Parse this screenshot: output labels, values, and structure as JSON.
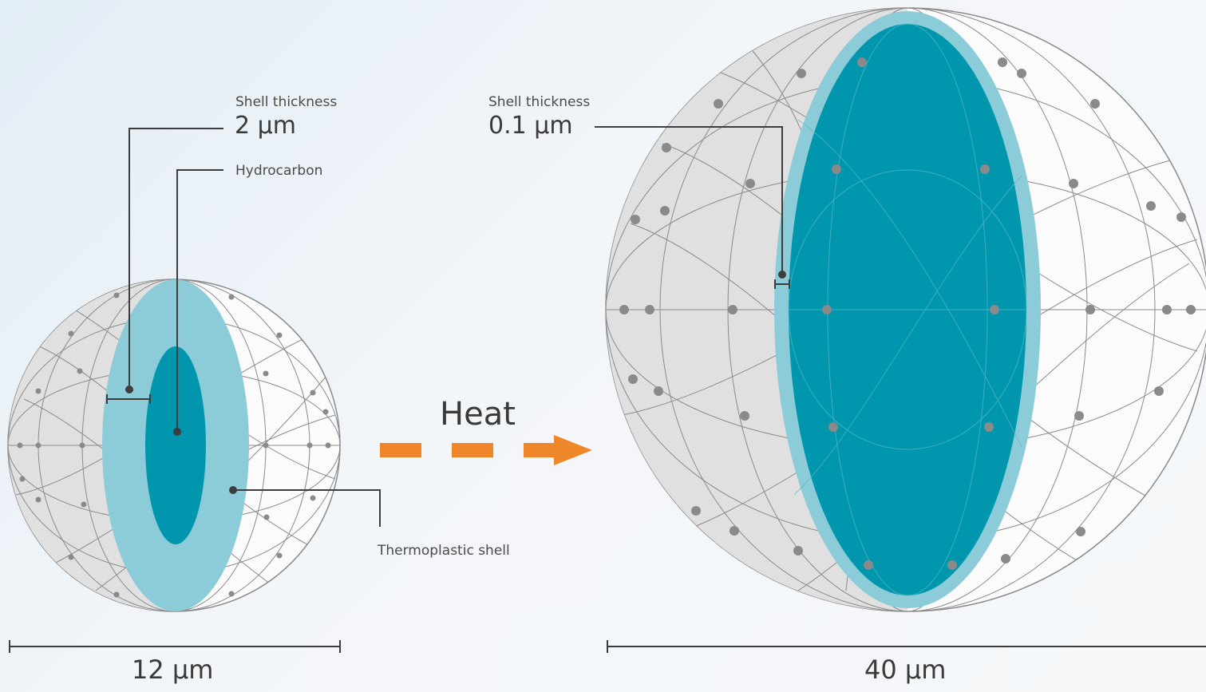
{
  "small_sphere": {
    "shell_label": "Shell thickness",
    "shell_value": "2 µm",
    "core_label": "Hydrocarbon",
    "shell_material_label": "Thermoplastic shell",
    "diameter": "12 µm"
  },
  "process": {
    "label": "Heat"
  },
  "large_sphere": {
    "shell_label": "Shell thickness",
    "shell_value": "0.1 µm",
    "diameter": "40 µm"
  },
  "colors": {
    "shell": "#8ccbd8",
    "core": "#0097ae",
    "sphere_fill": "#e0e0e0",
    "sphere_wire": "#8a8a8a",
    "arrow": "#f0862a",
    "line": "#3d3d3d"
  }
}
